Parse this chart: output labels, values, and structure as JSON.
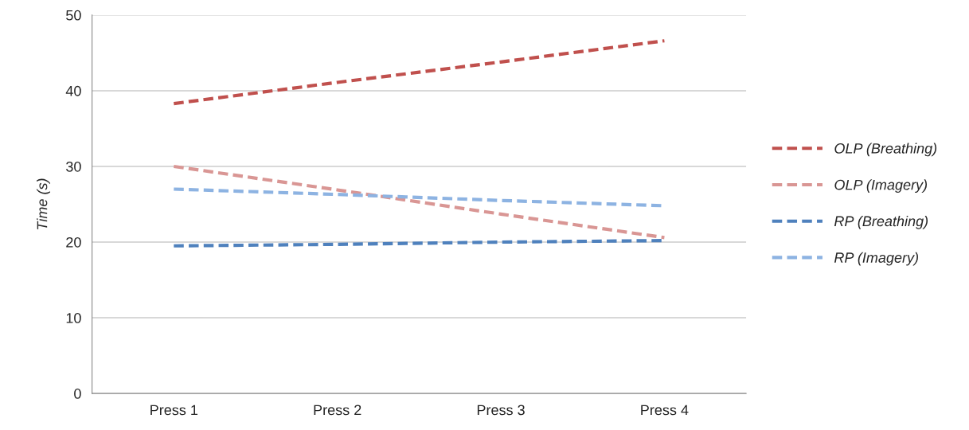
{
  "chart_data": {
    "type": "line",
    "ylabel": "Time (s)",
    "categories": [
      "Press 1",
      "Press 2",
      "Press 3",
      "Press 4"
    ],
    "series": [
      {
        "name": "OLP (Breathing)",
        "color": "#c0504d",
        "values": [
          38.3,
          41.1,
          43.8,
          46.6
        ]
      },
      {
        "name": "OLP (Imagery)",
        "color": "#d99694",
        "values": [
          30.0,
          26.9,
          23.7,
          20.6
        ]
      },
      {
        "name": "RP (Breathing)",
        "color": "#4f81bd",
        "values": [
          19.5,
          19.7,
          20.0,
          20.2
        ]
      },
      {
        "name": "RP (Imagery)",
        "color": "#8db3e2",
        "values": [
          27.0,
          26.3,
          25.5,
          24.8
        ]
      }
    ],
    "ylim": [
      0,
      50
    ],
    "yticks": [
      0,
      10,
      20,
      30,
      40,
      50
    ],
    "grid": "y",
    "legend": "right",
    "line_style": "dashed",
    "marker": "none"
  }
}
